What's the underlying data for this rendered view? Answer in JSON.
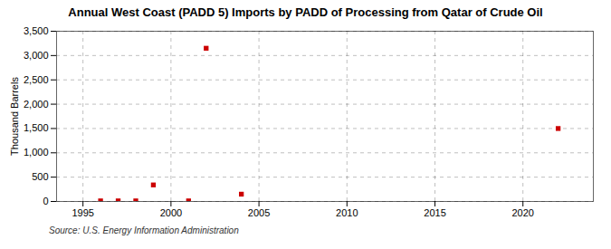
{
  "chart_data": {
    "type": "scatter",
    "title": "Annual West Coast (PADD 5) Imports by PADD of Processing from Qatar of Crude Oil",
    "ylabel": "Thousand Barrels",
    "source": "Source: U.S. Energy Information Administration",
    "x": [
      1996,
      1997,
      1998,
      1999,
      2001,
      2002,
      2004,
      2022
    ],
    "values": [
      12,
      12,
      12,
      340,
      12,
      3150,
      150,
      1500
    ],
    "color": "#cc0000",
    "marker": "square",
    "xlim": [
      1993.5,
      2024
    ],
    "xticks": [
      1995,
      2000,
      2005,
      2010,
      2015,
      2020
    ],
    "ylim": [
      0,
      3500
    ],
    "yticks": [
      0,
      500,
      {
        "value": 1000,
        "label": "1,000"
      },
      {
        "value": 1500,
        "label": "1,500"
      },
      {
        "value": 2000,
        "label": "2,000"
      },
      {
        "value": 2500,
        "label": "2,500"
      },
      {
        "value": 3000,
        "label": "3,000"
      },
      {
        "value": 3500,
        "label": "3,500"
      }
    ],
    "grid": true
  }
}
